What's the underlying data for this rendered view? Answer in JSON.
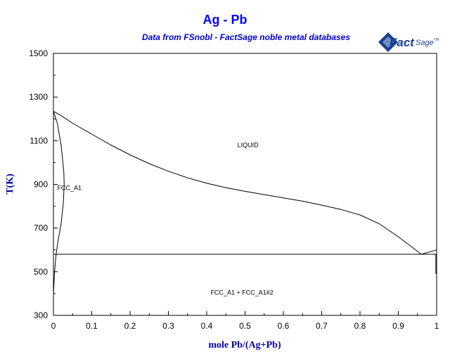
{
  "logo": {
    "part1": "Fact",
    "part2": "Sage",
    "mark": "TM",
    "colors": [
      "#1a3f8f",
      "#6f8fc4"
    ]
  },
  "chart_data": {
    "type": "line",
    "title": "Ag - Pb",
    "subtitle": "Data from FSnobl - FactSage noble metal databases",
    "xlabel": "mole Pb/(Ag+Pb)",
    "ylabel": "T(K)",
    "xlim": [
      0,
      1
    ],
    "ylim": [
      300,
      1500
    ],
    "x_ticks": [
      "0",
      "0.1",
      "0.2",
      "0.3",
      "0.4",
      "0.5",
      "0.6",
      "0.7",
      "0.8",
      "0.9",
      "1"
    ],
    "y_ticks": [
      "300",
      "500",
      "700",
      "900",
      "1100",
      "1300",
      "1500"
    ],
    "grid": false,
    "series": [
      {
        "points": [
          [
            0,
            1235
          ],
          [
            0.02,
            1215
          ],
          [
            0.05,
            1180
          ],
          [
            0.1,
            1130
          ],
          [
            0.15,
            1080
          ],
          [
            0.2,
            1035
          ],
          [
            0.25,
            995
          ],
          [
            0.3,
            960
          ],
          [
            0.35,
            930
          ],
          [
            0.4,
            905
          ],
          [
            0.45,
            885
          ],
          [
            0.5,
            868
          ],
          [
            0.55,
            853
          ],
          [
            0.6,
            838
          ],
          [
            0.65,
            823
          ],
          [
            0.7,
            805
          ],
          [
            0.75,
            785
          ],
          [
            0.8,
            760
          ],
          [
            0.85,
            720
          ],
          [
            0.9,
            660
          ],
          [
            0.93,
            620
          ],
          [
            0.96,
            580
          ]
        ]
      },
      {
        "points": [
          [
            0,
            1235
          ],
          [
            0.01,
            1180
          ],
          [
            0.02,
            1080
          ],
          [
            0.027,
            960
          ],
          [
            0.028,
            900
          ],
          [
            0.026,
            820
          ],
          [
            0.02,
            720
          ],
          [
            0.012,
            640
          ],
          [
            0.007,
            580
          ],
          [
            0.003,
            500
          ],
          [
            0,
            400
          ]
        ]
      },
      {
        "points": [
          [
            0,
            580
          ],
          [
            1,
            580
          ]
        ]
      },
      {
        "points": [
          [
            0.96,
            580
          ],
          [
            1,
            600
          ]
        ]
      },
      {
        "points": [
          [
            0.998,
            580
          ],
          [
            0.998,
            490
          ]
        ]
      }
    ],
    "annotations": [
      {
        "text": "LIQUID",
        "x": 0.48,
        "y": 1070
      },
      {
        "text": "FCC_A1",
        "x": 0.01,
        "y": 875
      },
      {
        "text": "FCC_A1 + FCC_A1#2",
        "x": 0.41,
        "y": 395
      }
    ]
  }
}
